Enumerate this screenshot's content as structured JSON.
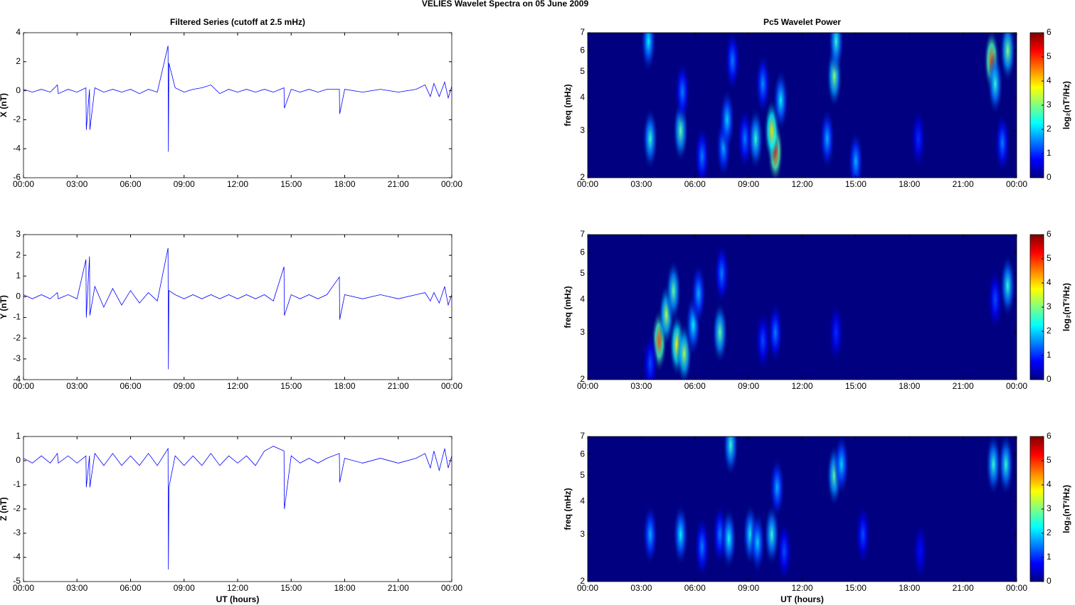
{
  "title": "VELIES Wavelet Spectra on 05 June      2009",
  "chart_data": [
    {
      "type": "line",
      "title": "Filtered Series (cutoff at 2.5 mHz)",
      "ylabel": "X (nT)",
      "x": [
        0,
        0.5,
        1,
        1.5,
        1.9,
        1.95,
        2.5,
        3,
        3.5,
        3.52,
        3.7,
        3.72,
        4,
        4.5,
        5,
        5.5,
        6,
        6.5,
        7,
        7.5,
        8.1,
        8.12,
        8.15,
        8.5,
        9,
        9.5,
        10,
        10.5,
        11,
        11.5,
        12,
        12.5,
        13,
        13.5,
        14,
        14.6,
        14.62,
        15,
        15.5,
        16,
        16.5,
        17,
        17.7,
        17.72,
        18,
        19,
        20,
        21,
        22,
        22.5,
        22.8,
        23,
        23.3,
        23.6,
        23.8,
        24
      ],
      "series": [
        {
          "color": "#0000ff",
          "values": [
            0.1,
            -0.1,
            0.1,
            -0.1,
            0.4,
            -0.2,
            0.1,
            -0.1,
            0.2,
            -2.7,
            0.1,
            -2.7,
            0.2,
            -0.1,
            0.1,
            -0.1,
            0.1,
            -0.2,
            0.1,
            -0.1,
            3.1,
            -4.2,
            1.9,
            0.2,
            -0.1,
            0.1,
            0.2,
            0.4,
            -0.2,
            0.1,
            -0.1,
            0.1,
            -0.1,
            0.1,
            -0.1,
            0.2,
            -1.2,
            0.1,
            -0.1,
            0.1,
            -0.1,
            0.1,
            0.1,
            -1.6,
            0.1,
            -0.1,
            0.1,
            -0.1,
            0.1,
            0.4,
            -0.4,
            0.5,
            -0.4,
            0.6,
            -0.5,
            0.3
          ]
        }
      ],
      "xlim": [
        0,
        24
      ],
      "ylim": [
        -6,
        4
      ],
      "yticks": [
        -6,
        -4,
        -2,
        0,
        2,
        4
      ],
      "xticks": [
        {
          "value": 0,
          "label": "00:00"
        },
        {
          "value": 3,
          "label": "03:00"
        },
        {
          "value": 6,
          "label": "06:00"
        },
        {
          "value": 9,
          "label": "09:00"
        },
        {
          "value": 12,
          "label": "12:00"
        },
        {
          "value": 15,
          "label": "15:00"
        },
        {
          "value": 18,
          "label": "18:00"
        },
        {
          "value": 21,
          "label": "21:00"
        },
        {
          "value": 24,
          "label": "00:00"
        }
      ]
    },
    {
      "type": "line",
      "ylabel": "Y (nT)",
      "x": [
        0,
        0.5,
        1,
        1.5,
        1.9,
        1.95,
        2.5,
        3,
        3.5,
        3.52,
        3.7,
        3.72,
        4,
        4.5,
        5,
        5.5,
        6,
        6.5,
        7,
        7.5,
        8.1,
        8.12,
        8.15,
        8.5,
        9,
        9.5,
        10,
        10.5,
        11,
        11.5,
        12,
        12.5,
        13,
        13.5,
        14,
        14.6,
        14.62,
        15,
        15.5,
        16,
        16.5,
        17,
        17.7,
        17.72,
        18,
        19,
        20,
        21,
        22,
        22.5,
        22.8,
        23,
        23.3,
        23.6,
        23.8,
        24
      ],
      "series": [
        {
          "color": "#0000ff",
          "values": [
            0.1,
            -0.1,
            0.1,
            -0.1,
            0.2,
            -0.1,
            0.1,
            -0.1,
            1.8,
            -1.0,
            1.95,
            -0.9,
            0.5,
            -0.5,
            0.4,
            -0.4,
            0.3,
            -0.3,
            0.2,
            -0.2,
            2.35,
            -3.5,
            0.3,
            0.1,
            -0.1,
            0.1,
            -0.1,
            0.1,
            -0.1,
            0.1,
            -0.1,
            0.1,
            -0.1,
            0.1,
            -0.2,
            1.45,
            -0.9,
            0.1,
            -0.1,
            0.1,
            -0.1,
            0.1,
            0.95,
            -1.1,
            0.1,
            -0.1,
            0.1,
            -0.1,
            0.1,
            0.2,
            -0.2,
            0.2,
            -0.3,
            0.5,
            -0.4,
            0.1
          ]
        }
      ],
      "xlim": [
        0,
        24
      ],
      "ylim": [
        -4,
        3
      ],
      "yticks": [
        -4,
        -3,
        -2,
        -1,
        0,
        1,
        2,
        3
      ],
      "xticks": [
        {
          "value": 0,
          "label": "00:00"
        },
        {
          "value": 3,
          "label": "03:00"
        },
        {
          "value": 6,
          "label": "06:00"
        },
        {
          "value": 9,
          "label": "09:00"
        },
        {
          "value": 12,
          "label": "12:00"
        },
        {
          "value": 15,
          "label": "15:00"
        },
        {
          "value": 18,
          "label": "18:00"
        },
        {
          "value": 21,
          "label": "21:00"
        },
        {
          "value": 24,
          "label": "00:00"
        }
      ]
    },
    {
      "type": "line",
      "ylabel": "Z (nT)",
      "xlabel": "UT (hours)",
      "x": [
        0,
        0.5,
        1,
        1.5,
        1.9,
        1.95,
        2.5,
        3,
        3.5,
        3.52,
        3.7,
        3.72,
        4,
        4.5,
        5,
        5.5,
        6,
        6.5,
        7,
        7.5,
        8.1,
        8.12,
        8.15,
        8.5,
        9,
        9.5,
        10,
        10.5,
        11,
        11.5,
        12,
        12.5,
        13,
        13.5,
        14,
        14.6,
        14.62,
        15,
        15.5,
        16,
        16.5,
        17,
        17.7,
        17.72,
        18,
        19,
        20,
        21,
        22,
        22.5,
        22.8,
        23,
        23.3,
        23.6,
        23.8,
        24
      ],
      "series": [
        {
          "color": "#0000ff",
          "values": [
            0.1,
            -0.1,
            0.2,
            -0.1,
            0.3,
            -0.1,
            0.2,
            -0.1,
            0.2,
            -1.1,
            0.2,
            -1.1,
            0.3,
            -0.2,
            0.3,
            -0.2,
            0.2,
            -0.2,
            0.3,
            -0.2,
            0.5,
            -4.5,
            -1.1,
            0.2,
            -0.2,
            0.2,
            -0.2,
            0.3,
            -0.2,
            0.2,
            -0.1,
            0.2,
            -0.2,
            0.4,
            0.6,
            0.4,
            -2.0,
            0.2,
            -0.1,
            0.1,
            -0.1,
            0.1,
            0.3,
            -0.9,
            0.1,
            -0.1,
            0.1,
            -0.1,
            0.1,
            0.3,
            -0.3,
            0.4,
            -0.4,
            0.5,
            -0.3,
            0.2
          ]
        }
      ],
      "xlim": [
        0,
        24
      ],
      "ylim": [
        -5,
        1
      ],
      "yticks": [
        -5,
        -4,
        -3,
        -2,
        -1,
        0,
        1
      ],
      "xticks": [
        {
          "value": 0,
          "label": "00:00"
        },
        {
          "value": 3,
          "label": "03:00"
        },
        {
          "value": 6,
          "label": "06:00"
        },
        {
          "value": 9,
          "label": "09:00"
        },
        {
          "value": 12,
          "label": "12:00"
        },
        {
          "value": 15,
          "label": "15:00"
        },
        {
          "value": 18,
          "label": "18:00"
        },
        {
          "value": 21,
          "label": "21:00"
        },
        {
          "value": 24,
          "label": "00:00"
        }
      ]
    },
    {
      "type": "heatmap",
      "title": "Pc5 Wavelet Power",
      "ylabel": "freq (mHz)",
      "colormap": "jet",
      "log_y": true,
      "x": [
        3.5,
        3.4,
        5.2,
        5.3,
        6.4,
        7.6,
        7.8,
        8.8,
        8.1,
        9.4,
        9.8,
        10.5,
        10.3,
        10.8,
        13.4,
        13.8,
        13.9,
        15.0,
        18.5,
        22.6,
        22.8,
        23.2,
        23.5
      ],
      "y": [
        2.8,
        6.5,
        3.0,
        4.2,
        2.4,
        2.6,
        3.3,
        2.8,
        5.5,
        2.8,
        4.5,
        2.5,
        3.0,
        3.9,
        2.8,
        4.8,
        6.5,
        2.3,
        2.8,
        5.5,
        4.5,
        2.7,
        6.0
      ],
      "values": [
        2.5,
        2.2,
        2.8,
        1.5,
        1.5,
        1.8,
        2.0,
        1.5,
        1.5,
        2.5,
        1.6,
        5.0,
        4.0,
        2.2,
        1.8,
        3.0,
        2.5,
        1.8,
        1.0,
        4.8,
        2.5,
        1.5,
        3.0
      ],
      "xlim": [
        0,
        24
      ],
      "ylim": [
        2,
        7
      ],
      "yticks": [
        2,
        3,
        4,
        5,
        6,
        7
      ],
      "xticks": [
        {
          "value": 0,
          "label": "00:00"
        },
        {
          "value": 3,
          "label": "03:00"
        },
        {
          "value": 6,
          "label": "06:00"
        },
        {
          "value": 9,
          "label": "09:00"
        },
        {
          "value": 12,
          "label": "12:00"
        },
        {
          "value": 15,
          "label": "15:00"
        },
        {
          "value": 18,
          "label": "18:00"
        },
        {
          "value": 21,
          "label": "21:00"
        },
        {
          "value": 24,
          "label": "00:00"
        }
      ],
      "colorbar": {
        "label": "log₂(nT²/Hz)",
        "lim": [
          0,
          6
        ],
        "ticks": [
          0,
          1,
          2,
          3,
          4,
          5,
          6
        ]
      }
    },
    {
      "type": "heatmap",
      "ylabel": "freq (mHz)",
      "colormap": "jet",
      "log_y": true,
      "x": [
        4.0,
        4.4,
        4.8,
        5.0,
        5.4,
        5.9,
        6.2,
        7.4,
        7.5,
        3.5,
        9.8,
        10.5,
        13.9,
        22.8,
        23.5
      ],
      "y": [
        2.8,
        3.5,
        4.3,
        2.7,
        2.5,
        3.2,
        4.2,
        3.0,
        5.0,
        2.3,
        2.8,
        3.0,
        3.0,
        4.0,
        4.5
      ],
      "values": [
        4.8,
        3.2,
        2.8,
        3.8,
        3.2,
        2.2,
        1.8,
        2.8,
        1.5,
        1.2,
        1.2,
        1.5,
        1.0,
        1.2,
        2.5
      ],
      "xlim": [
        0,
        24
      ],
      "ylim": [
        2,
        7
      ],
      "yticks": [
        2,
        3,
        4,
        5,
        6,
        7
      ],
      "xticks": [
        {
          "value": 0,
          "label": "00:00"
        },
        {
          "value": 3,
          "label": "03:00"
        },
        {
          "value": 6,
          "label": "06:00"
        },
        {
          "value": 9,
          "label": "09:00"
        },
        {
          "value": 12,
          "label": "12:00"
        },
        {
          "value": 15,
          "label": "15:00"
        },
        {
          "value": 18,
          "label": "18:00"
        },
        {
          "value": 21,
          "label": "21:00"
        },
        {
          "value": 24,
          "label": "00:00"
        }
      ],
      "colorbar": {
        "label": "log₂(nT²/Hz)",
        "lim": [
          0,
          6
        ],
        "ticks": [
          0,
          1,
          2,
          3,
          4,
          5,
          6
        ]
      }
    },
    {
      "type": "heatmap",
      "ylabel": "freq (mHz)",
      "xlabel": "UT (hours)",
      "colormap": "jet",
      "log_y": true,
      "x": [
        3.5,
        5.2,
        6.4,
        7.4,
        7.9,
        8.0,
        9.1,
        9.5,
        10.3,
        10.6,
        11.0,
        13.8,
        14.2,
        15.4,
        18.6,
        22.7,
        23.4
      ],
      "y": [
        3.0,
        3.0,
        2.7,
        3.0,
        2.9,
        6.5,
        3.0,
        2.8,
        3.0,
        4.5,
        2.6,
        5.0,
        5.5,
        3.0,
        2.6,
        5.5,
        5.5
      ],
      "values": [
        1.8,
        2.2,
        1.5,
        1.5,
        2.3,
        2.5,
        2.3,
        2.0,
        2.5,
        1.8,
        1.2,
        2.8,
        2.0,
        1.2,
        0.8,
        2.5,
        2.5
      ],
      "xlim": [
        0,
        24
      ],
      "ylim": [
        2,
        7
      ],
      "yticks": [
        2,
        3,
        4,
        5,
        6,
        7
      ],
      "xticks": [
        {
          "value": 0,
          "label": "00:00"
        },
        {
          "value": 3,
          "label": "03:00"
        },
        {
          "value": 6,
          "label": "06:00"
        },
        {
          "value": 9,
          "label": "09:00"
        },
        {
          "value": 12,
          "label": "12:00"
        },
        {
          "value": 15,
          "label": "15:00"
        },
        {
          "value": 18,
          "label": "18:00"
        },
        {
          "value": 21,
          "label": "21:00"
        },
        {
          "value": 24,
          "label": "00:00"
        }
      ],
      "colorbar": {
        "label": "log₂(nT²/Hz)",
        "lim": [
          0,
          6
        ],
        "ticks": [
          0,
          1,
          2,
          3,
          4,
          5,
          6
        ]
      }
    }
  ]
}
